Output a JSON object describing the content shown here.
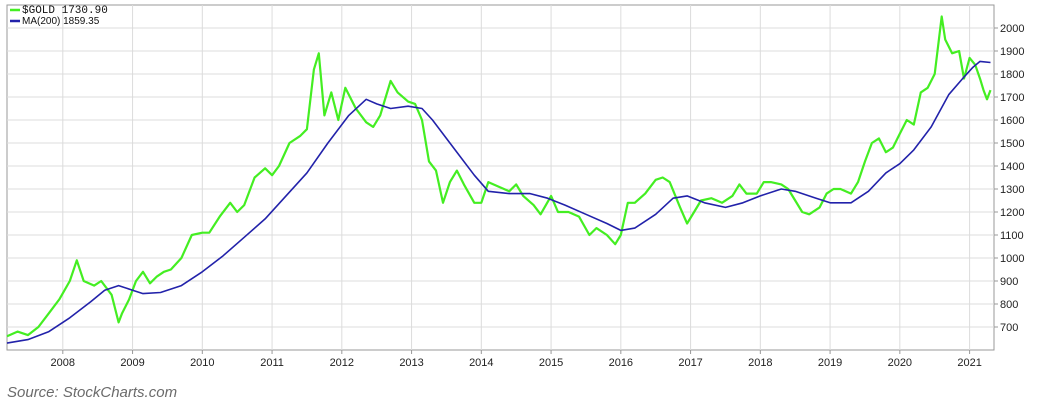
{
  "caption": "Source: StockCharts.com",
  "chart_data": {
    "type": "line",
    "ylim": [
      600,
      2100
    ],
    "xlim": [
      2007.2,
      2021.35
    ],
    "y_ticks": [
      700,
      800,
      900,
      1000,
      1100,
      1200,
      1300,
      1400,
      1500,
      1600,
      1700,
      1800,
      1900,
      2000
    ],
    "x_ticks": [
      2008,
      2009,
      2010,
      2011,
      2012,
      2013,
      2014,
      2015,
      2016,
      2017,
      2018,
      2019,
      2020,
      2021
    ],
    "grid": true,
    "legend_position": "top-left",
    "legend": [
      {
        "label": "$GOLD 1730.90",
        "color": "#44ee22"
      },
      {
        "label": "MA(200) 1859.35",
        "color": "#2222aa"
      }
    ],
    "series": [
      {
        "name": "$GOLD",
        "color": "#44ee22",
        "points": [
          [
            2007.2,
            660
          ],
          [
            2007.35,
            680
          ],
          [
            2007.5,
            665
          ],
          [
            2007.65,
            700
          ],
          [
            2007.8,
            760
          ],
          [
            2007.95,
            820
          ],
          [
            2008.1,
            900
          ],
          [
            2008.2,
            990
          ],
          [
            2008.3,
            900
          ],
          [
            2008.45,
            880
          ],
          [
            2008.55,
            900
          ],
          [
            2008.7,
            840
          ],
          [
            2008.8,
            720
          ],
          [
            2008.85,
            760
          ],
          [
            2008.95,
            820
          ],
          [
            2009.05,
            900
          ],
          [
            2009.15,
            940
          ],
          [
            2009.25,
            890
          ],
          [
            2009.35,
            920
          ],
          [
            2009.45,
            940
          ],
          [
            2009.55,
            950
          ],
          [
            2009.7,
            1000
          ],
          [
            2009.85,
            1100
          ],
          [
            2010.0,
            1110
          ],
          [
            2010.1,
            1110
          ],
          [
            2010.25,
            1180
          ],
          [
            2010.4,
            1240
          ],
          [
            2010.5,
            1200
          ],
          [
            2010.6,
            1230
          ],
          [
            2010.75,
            1350
          ],
          [
            2010.9,
            1390
          ],
          [
            2011.0,
            1360
          ],
          [
            2011.1,
            1400
          ],
          [
            2011.25,
            1500
          ],
          [
            2011.4,
            1530
          ],
          [
            2011.5,
            1560
          ],
          [
            2011.6,
            1820
          ],
          [
            2011.67,
            1890
          ],
          [
            2011.75,
            1620
          ],
          [
            2011.85,
            1720
          ],
          [
            2011.95,
            1600
          ],
          [
            2012.05,
            1740
          ],
          [
            2012.2,
            1650
          ],
          [
            2012.35,
            1590
          ],
          [
            2012.45,
            1570
          ],
          [
            2012.55,
            1620
          ],
          [
            2012.7,
            1770
          ],
          [
            2012.8,
            1720
          ],
          [
            2012.95,
            1680
          ],
          [
            2013.05,
            1670
          ],
          [
            2013.15,
            1600
          ],
          [
            2013.25,
            1420
          ],
          [
            2013.35,
            1380
          ],
          [
            2013.45,
            1240
          ],
          [
            2013.55,
            1330
          ],
          [
            2013.65,
            1380
          ],
          [
            2013.75,
            1320
          ],
          [
            2013.9,
            1240
          ],
          [
            2014.0,
            1240
          ],
          [
            2014.1,
            1330
          ],
          [
            2014.25,
            1310
          ],
          [
            2014.4,
            1290
          ],
          [
            2014.5,
            1320
          ],
          [
            2014.6,
            1270
          ],
          [
            2014.75,
            1230
          ],
          [
            2014.85,
            1190
          ],
          [
            2015.0,
            1270
          ],
          [
            2015.1,
            1200
          ],
          [
            2015.25,
            1200
          ],
          [
            2015.4,
            1180
          ],
          [
            2015.55,
            1100
          ],
          [
            2015.65,
            1130
          ],
          [
            2015.8,
            1100
          ],
          [
            2015.92,
            1060
          ],
          [
            2016.0,
            1100
          ],
          [
            2016.1,
            1240
          ],
          [
            2016.2,
            1240
          ],
          [
            2016.35,
            1280
          ],
          [
            2016.5,
            1340
          ],
          [
            2016.6,
            1350
          ],
          [
            2016.7,
            1330
          ],
          [
            2016.85,
            1220
          ],
          [
            2016.95,
            1150
          ],
          [
            2017.05,
            1200
          ],
          [
            2017.15,
            1250
          ],
          [
            2017.3,
            1260
          ],
          [
            2017.45,
            1240
          ],
          [
            2017.6,
            1270
          ],
          [
            2017.7,
            1320
          ],
          [
            2017.8,
            1280
          ],
          [
            2017.95,
            1280
          ],
          [
            2018.05,
            1330
          ],
          [
            2018.15,
            1330
          ],
          [
            2018.3,
            1320
          ],
          [
            2018.4,
            1300
          ],
          [
            2018.5,
            1250
          ],
          [
            2018.6,
            1200
          ],
          [
            2018.7,
            1190
          ],
          [
            2018.85,
            1220
          ],
          [
            2018.95,
            1280
          ],
          [
            2019.05,
            1300
          ],
          [
            2019.15,
            1300
          ],
          [
            2019.3,
            1280
          ],
          [
            2019.4,
            1330
          ],
          [
            2019.5,
            1420
          ],
          [
            2019.6,
            1500
          ],
          [
            2019.7,
            1520
          ],
          [
            2019.8,
            1460
          ],
          [
            2019.9,
            1480
          ],
          [
            2020.0,
            1540
          ],
          [
            2020.1,
            1600
          ],
          [
            2020.2,
            1580
          ],
          [
            2020.3,
            1720
          ],
          [
            2020.4,
            1740
          ],
          [
            2020.5,
            1800
          ],
          [
            2020.6,
            2050
          ],
          [
            2020.65,
            1950
          ],
          [
            2020.75,
            1890
          ],
          [
            2020.85,
            1900
          ],
          [
            2020.92,
            1780
          ],
          [
            2021.0,
            1870
          ],
          [
            2021.08,
            1840
          ],
          [
            2021.15,
            1780
          ],
          [
            2021.2,
            1730
          ],
          [
            2021.25,
            1690
          ],
          [
            2021.3,
            1730
          ]
        ]
      },
      {
        "name": "MA(200)",
        "color": "#2222aa",
        "points": [
          [
            2007.2,
            630
          ],
          [
            2007.5,
            645
          ],
          [
            2007.8,
            680
          ],
          [
            2008.1,
            740
          ],
          [
            2008.4,
            810
          ],
          [
            2008.6,
            860
          ],
          [
            2008.8,
            880
          ],
          [
            2009.0,
            860
          ],
          [
            2009.15,
            845
          ],
          [
            2009.4,
            850
          ],
          [
            2009.7,
            880
          ],
          [
            2010.0,
            940
          ],
          [
            2010.3,
            1010
          ],
          [
            2010.6,
            1090
          ],
          [
            2010.9,
            1170
          ],
          [
            2011.2,
            1270
          ],
          [
            2011.5,
            1370
          ],
          [
            2011.8,
            1500
          ],
          [
            2012.1,
            1620
          ],
          [
            2012.35,
            1690
          ],
          [
            2012.5,
            1670
          ],
          [
            2012.7,
            1650
          ],
          [
            2012.95,
            1660
          ],
          [
            2013.15,
            1650
          ],
          [
            2013.3,
            1600
          ],
          [
            2013.6,
            1480
          ],
          [
            2013.9,
            1360
          ],
          [
            2014.1,
            1290
          ],
          [
            2014.4,
            1280
          ],
          [
            2014.7,
            1280
          ],
          [
            2014.95,
            1260
          ],
          [
            2015.2,
            1230
          ],
          [
            2015.5,
            1190
          ],
          [
            2015.8,
            1150
          ],
          [
            2016.0,
            1120
          ],
          [
            2016.2,
            1130
          ],
          [
            2016.5,
            1190
          ],
          [
            2016.75,
            1260
          ],
          [
            2016.95,
            1270
          ],
          [
            2017.2,
            1240
          ],
          [
            2017.5,
            1220
          ],
          [
            2017.75,
            1240
          ],
          [
            2018.0,
            1270
          ],
          [
            2018.3,
            1300
          ],
          [
            2018.5,
            1290
          ],
          [
            2018.8,
            1260
          ],
          [
            2019.0,
            1240
          ],
          [
            2019.3,
            1240
          ],
          [
            2019.55,
            1290
          ],
          [
            2019.8,
            1370
          ],
          [
            2020.0,
            1410
          ],
          [
            2020.2,
            1470
          ],
          [
            2020.45,
            1570
          ],
          [
            2020.7,
            1710
          ],
          [
            2020.9,
            1780
          ],
          [
            2021.05,
            1830
          ],
          [
            2021.15,
            1855
          ],
          [
            2021.3,
            1850
          ]
        ]
      }
    ]
  }
}
